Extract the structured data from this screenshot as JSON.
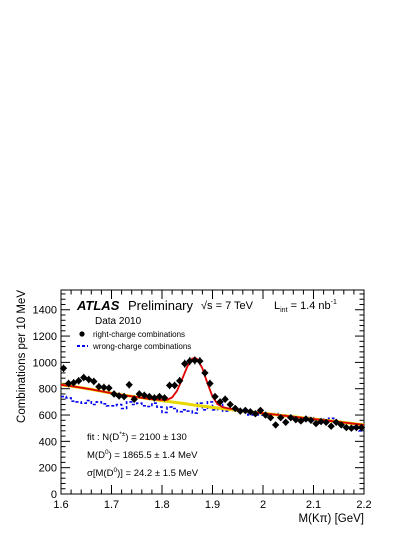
{
  "chart_data": {
    "type": "scatter",
    "xlabel": "M(Kπ) [GeV]",
    "ylabel": "Combinations per 10 MeV",
    "xlim": [
      1.6,
      2.2
    ],
    "ylim": [
      0,
      1550
    ],
    "x_ticks": [
      "1.6",
      "1.7",
      "1.8",
      "1.9",
      "2",
      "2.1",
      "2.2"
    ],
    "y_ticks": [
      "0",
      "200",
      "400",
      "600",
      "800",
      "1000",
      "1200",
      "1400"
    ],
    "grid": false,
    "legend_position": "top-left",
    "header": {
      "experiment": "ATLAS",
      "status": "Preliminary",
      "energy_prefix": "√s = 7 TeV",
      "lumi_prefix": "L",
      "lumi_sub": "int",
      "lumi_value": " = 1.4 nb",
      "lumi_sup": "-1",
      "dataset": "Data 2010"
    },
    "legend": [
      {
        "label": "right-charge combinations",
        "marker": "dot",
        "color": "#000000"
      },
      {
        "label": "wrong-charge combinations",
        "marker": "dashed-line",
        "color": "#0000ee"
      }
    ],
    "fit_results": {
      "n_prefix": "fit  : N(D",
      "n_sup": "*±",
      "n_suffix": ") = 2100 ± 130",
      "mass_prefix": "M(D",
      "mass_sup": "0",
      "mass_suffix": ") = 1865.5 ± 1.4 MeV",
      "sigma_prefix": "σ[M(D",
      "sigma_sup": "0",
      "sigma_suffix": ")] = 24.2 ± 1.5 MeV"
    },
    "series": [
      {
        "name": "right-charge combinations",
        "style": "points",
        "color": "#000000",
        "x": [
          1.605,
          1.615,
          1.625,
          1.635,
          1.645,
          1.655,
          1.665,
          1.675,
          1.685,
          1.695,
          1.705,
          1.715,
          1.725,
          1.735,
          1.745,
          1.755,
          1.765,
          1.775,
          1.785,
          1.795,
          1.805,
          1.815,
          1.825,
          1.835,
          1.845,
          1.855,
          1.865,
          1.875,
          1.885,
          1.895,
          1.905,
          1.915,
          1.925,
          1.935,
          1.945,
          1.955,
          1.965,
          1.975,
          1.985,
          1.995,
          2.005,
          2.015,
          2.025,
          2.035,
          2.045,
          2.055,
          2.065,
          2.075,
          2.085,
          2.095,
          2.105,
          2.115,
          2.125,
          2.135,
          2.145,
          2.155,
          2.165,
          2.175,
          2.185,
          2.195
        ],
        "y": [
          955,
          840,
          845,
          860,
          885,
          870,
          855,
          815,
          810,
          805,
          760,
          745,
          740,
          830,
          720,
          760,
          750,
          740,
          730,
          740,
          730,
          825,
          825,
          860,
          990,
          1010,
          1015,
          1010,
          920,
          840,
          740,
          700,
          720,
          680,
          650,
          630,
          635,
          625,
          610,
          635,
          600,
          580,
          525,
          580,
          545,
          580,
          565,
          555,
          570,
          560,
          535,
          550,
          545,
          515,
          545,
          525,
          505,
          500,
          505,
          505
        ],
        "y_err": [
          28,
          28,
          28,
          28,
          28,
          28,
          28,
          28,
          28,
          28,
          27,
          27,
          27,
          28,
          27,
          27,
          27,
          27,
          27,
          27,
          27,
          28,
          28,
          28,
          31,
          31,
          31,
          31,
          30,
          28,
          27,
          26,
          27,
          26,
          25,
          25,
          25,
          25,
          24,
          25,
          24,
          24,
          23,
          24,
          23,
          24,
          23,
          23,
          23,
          23,
          23,
          23,
          23,
          22,
          23,
          22,
          22,
          22,
          22,
          22
        ]
      },
      {
        "name": "wrong-charge combinations",
        "style": "dashed-step",
        "color": "#0000ee",
        "x": [
          1.6,
          1.61,
          1.62,
          1.63,
          1.64,
          1.65,
          1.66,
          1.67,
          1.68,
          1.69,
          1.7,
          1.71,
          1.72,
          1.73,
          1.74,
          1.75,
          1.76,
          1.77,
          1.78,
          1.79,
          1.8,
          1.81,
          1.82,
          1.83,
          1.84,
          1.85,
          1.86,
          1.87,
          1.88,
          1.89,
          1.9,
          1.91,
          1.92,
          1.93,
          1.94,
          1.95,
          1.96,
          1.97,
          1.98,
          1.99,
          2.0,
          2.01,
          2.02,
          2.03,
          2.04,
          2.05,
          2.06,
          2.07,
          2.08,
          2.09,
          2.1,
          2.11,
          2.12,
          2.13,
          2.14,
          2.15,
          2.16,
          2.17,
          2.18,
          2.19
        ],
        "y": [
          740,
          730,
          705,
          700,
          690,
          710,
          680,
          700,
          685,
          670,
          670,
          680,
          650,
          700,
          680,
          690,
          670,
          665,
          690,
          660,
          620,
          660,
          650,
          625,
          640,
          630,
          615,
          690,
          640,
          700,
          640,
          680,
          630,
          650,
          635,
          620,
          620,
          600,
          620,
          600,
          610,
          600,
          610,
          590,
          600,
          580,
          585,
          575,
          580,
          580,
          555,
          570,
          550,
          575,
          545,
          520,
          540,
          530,
          510,
          480
        ]
      },
      {
        "name": "",
        "style": "line",
        "color": "#e8d800",
        "x": [
          1.6,
          1.62,
          1.64,
          1.66,
          1.68,
          1.7,
          1.72,
          1.74,
          1.76,
          1.78,
          1.8,
          1.82,
          1.84,
          1.86,
          1.88,
          1.9,
          1.92,
          1.94,
          1.96,
          1.98,
          2.0,
          2.02,
          2.04,
          2.06,
          2.08,
          2.1,
          2.12,
          2.14,
          2.16,
          2.18,
          2.2
        ],
        "y": [
          830,
          820,
          808,
          795,
          780,
          766,
          754,
          742,
          731,
          720,
          709,
          699,
          689,
          678,
          668,
          658,
          649,
          640,
          631,
          622,
          613,
          605,
          596,
          587,
          578,
          570,
          561,
          552,
          543,
          534,
          525
        ]
      },
      {
        "name": "",
        "style": "line",
        "color": "#dd0000",
        "x": [
          1.6,
          1.62,
          1.64,
          1.66,
          1.68,
          1.7,
          1.72,
          1.74,
          1.76,
          1.78,
          1.8,
          1.81,
          1.82,
          1.83,
          1.84,
          1.85,
          1.86,
          1.865,
          1.87,
          1.88,
          1.89,
          1.9,
          1.91,
          1.92,
          1.93,
          1.94,
          1.96,
          1.98,
          2.0,
          2.02,
          2.04,
          2.06,
          2.08,
          2.1,
          2.12,
          2.14,
          2.16,
          2.18,
          2.2
        ],
        "y": [
          830,
          820,
          808,
          795,
          780,
          766,
          754,
          742,
          731,
          720,
          714,
          716,
          733,
          785,
          874,
          968,
          1029,
          1035,
          1024,
          955,
          843,
          740,
          684,
          660,
          651,
          646,
          632,
          622,
          613,
          605,
          596,
          587,
          578,
          570,
          561,
          552,
          543,
          534,
          525
        ]
      }
    ]
  }
}
